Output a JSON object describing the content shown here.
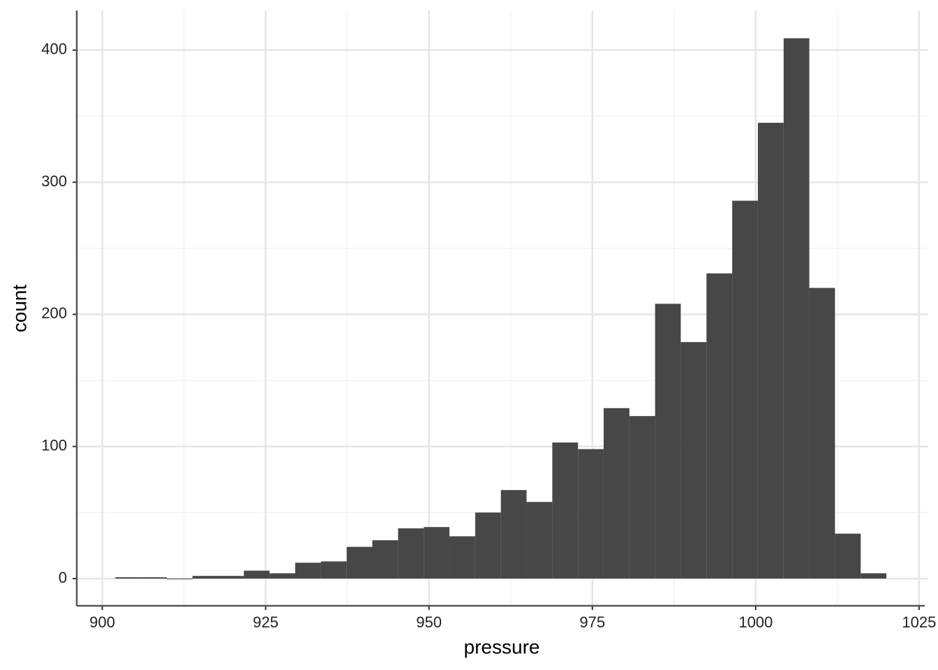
{
  "chart_data": {
    "type": "histogram",
    "x_label": "pressure",
    "y_label": "count",
    "bins": [
      902,
      905.93,
      909.87,
      913.8,
      917.73,
      921.67,
      925.6,
      929.53,
      933.47,
      937.4,
      941.33,
      945.27,
      949.2,
      953.13,
      957.07,
      961,
      964.93,
      968.87,
      972.8,
      976.73,
      980.67,
      984.6,
      988.53,
      992.47,
      996.4,
      1000.33,
      1004.27,
      1008.2,
      1012.13,
      1016.07,
      1020
    ],
    "values": [
      1,
      1,
      0,
      2,
      2,
      6,
      4,
      12,
      13,
      24,
      29,
      38,
      39,
      32,
      50,
      67,
      58,
      103,
      98,
      129,
      123,
      208,
      179,
      231,
      286,
      345,
      409,
      220,
      34,
      4
    ],
    "color": "#474747",
    "xlim": [
      896.1,
      1026.4
    ],
    "ylim": [
      -20.6,
      430
    ],
    "xticks": [
      900,
      925,
      950,
      975,
      1000,
      1025
    ],
    "yticks": [
      0,
      100,
      200,
      300,
      400
    ],
    "xminor": [
      912.5,
      937.5,
      962.5,
      987.5,
      1012.5
    ],
    "yminor": [
      50,
      150,
      250,
      350
    ],
    "grid": true
  }
}
